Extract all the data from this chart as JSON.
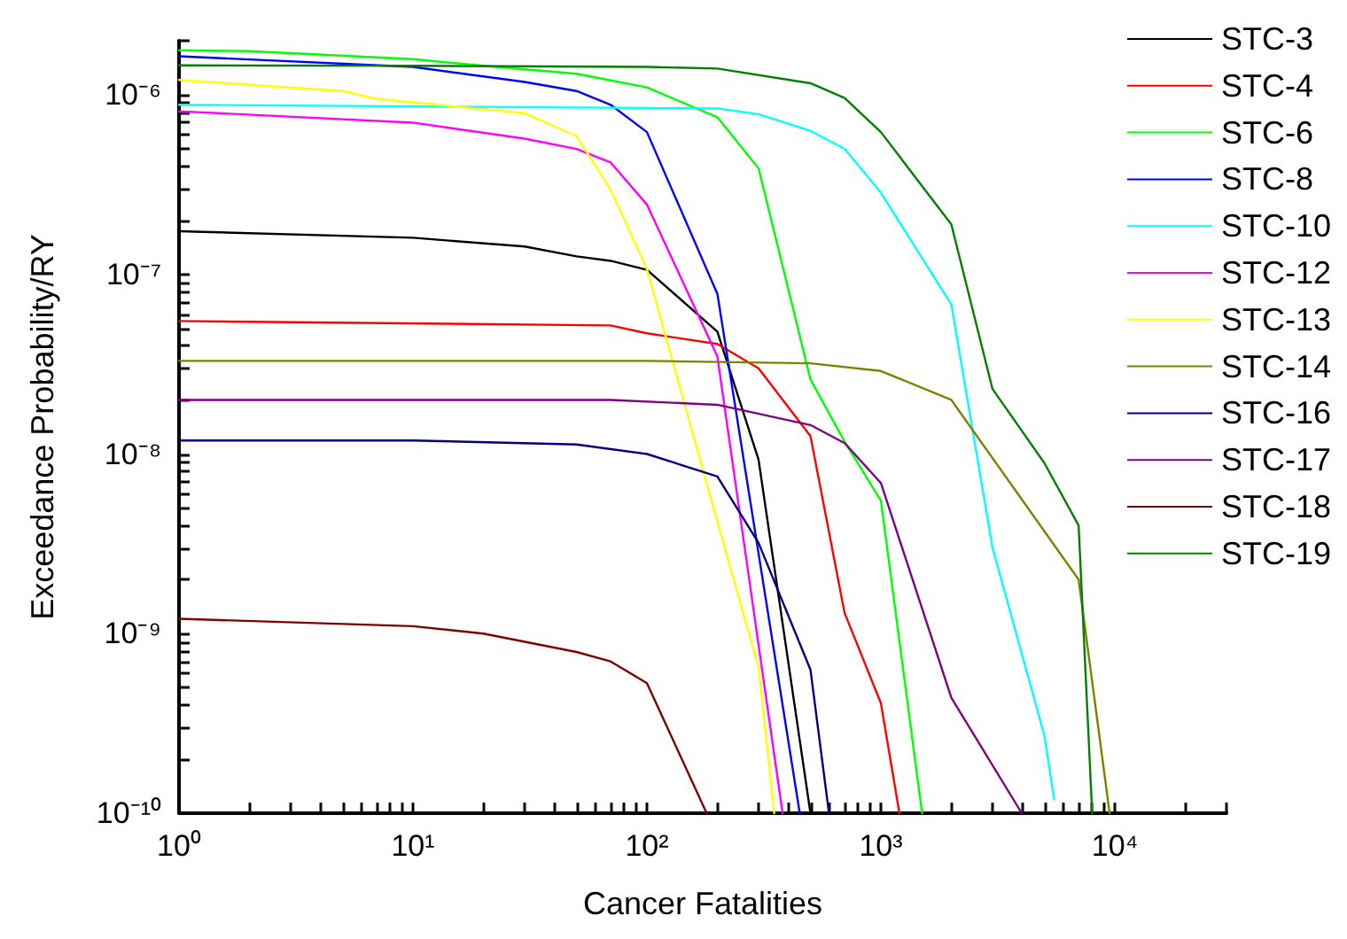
{
  "chart_data": {
    "type": "line",
    "xlabel": "Cancer Fatalities",
    "ylabel": "Exceedance Probability/RY",
    "log": "xy",
    "legend": "top right",
    "marker": "none",
    "line_style": "solid",
    "xlim": [
      1,
      30000
    ],
    "ylim": [
      1e-10,
      2e-06
    ],
    "xticks": [
      {
        "value": 1,
        "label": "10⁰"
      },
      {
        "value": 2,
        "label": null
      },
      {
        "value": 3,
        "label": null
      },
      {
        "value": 4,
        "label": null
      },
      {
        "value": 5,
        "label": null
      },
      {
        "value": 6,
        "label": null
      },
      {
        "value": 7,
        "label": null
      },
      {
        "value": 8,
        "label": null
      },
      {
        "value": 9,
        "label": null
      },
      {
        "value": 10,
        "label": "10¹"
      },
      {
        "value": 20,
        "label": null
      },
      {
        "value": 30,
        "label": null
      },
      {
        "value": 40,
        "label": null
      },
      {
        "value": 50,
        "label": null
      },
      {
        "value": 60,
        "label": null
      },
      {
        "value": 70,
        "label": null
      },
      {
        "value": 80,
        "label": null
      },
      {
        "value": 90,
        "label": null
      },
      {
        "value": 100,
        "label": "10²"
      },
      {
        "value": 200,
        "label": null
      },
      {
        "value": 300,
        "label": null
      },
      {
        "value": 400,
        "label": null
      },
      {
        "value": 500,
        "label": null
      },
      {
        "value": 600,
        "label": null
      },
      {
        "value": 700,
        "label": null
      },
      {
        "value": 800,
        "label": null
      },
      {
        "value": 900,
        "label": null
      },
      {
        "value": 1000,
        "label": "10³"
      },
      {
        "value": 2000,
        "label": null
      },
      {
        "value": 3000,
        "label": null
      },
      {
        "value": 4000,
        "label": null
      },
      {
        "value": 5000,
        "label": null
      },
      {
        "value": 6000,
        "label": null
      },
      {
        "value": 7000,
        "label": null
      },
      {
        "value": 8000,
        "label": null
      },
      {
        "value": 9000,
        "label": null
      },
      {
        "value": 10000,
        "label": "10⁴"
      },
      {
        "value": 20000,
        "label": null
      },
      {
        "value": 30000,
        "label": null
      }
    ],
    "yticks": [
      {
        "value": 1e-10,
        "label": "10⁻¹⁰"
      },
      {
        "value": 2e-10,
        "label": null
      },
      {
        "value": 3e-10,
        "label": null
      },
      {
        "value": 4e-10,
        "label": null
      },
      {
        "value": 5e-10,
        "label": null
      },
      {
        "value": 6e-10,
        "label": null
      },
      {
        "value": 7e-10,
        "label": null
      },
      {
        "value": 8e-10,
        "label": null
      },
      {
        "value": 9e-10,
        "label": null
      },
      {
        "value": 1e-09,
        "label": "10⁻⁹"
      },
      {
        "value": 2e-09,
        "label": null
      },
      {
        "value": 3e-09,
        "label": null
      },
      {
        "value": 4e-09,
        "label": null
      },
      {
        "value": 5e-09,
        "label": null
      },
      {
        "value": 6e-09,
        "label": null
      },
      {
        "value": 7e-09,
        "label": null
      },
      {
        "value": 8e-09,
        "label": null
      },
      {
        "value": 9e-09,
        "label": null
      },
      {
        "value": 1e-08,
        "label": "10⁻⁸"
      },
      {
        "value": 2e-08,
        "label": null
      },
      {
        "value": 3e-08,
        "label": null
      },
      {
        "value": 4e-08,
        "label": null
      },
      {
        "value": 5e-08,
        "label": null
      },
      {
        "value": 6e-08,
        "label": null
      },
      {
        "value": 7e-08,
        "label": null
      },
      {
        "value": 8e-08,
        "label": null
      },
      {
        "value": 9e-08,
        "label": null
      },
      {
        "value": 1e-07,
        "label": "10⁻⁷"
      },
      {
        "value": 2e-07,
        "label": null
      },
      {
        "value": 3e-07,
        "label": null
      },
      {
        "value": 4e-07,
        "label": null
      },
      {
        "value": 5e-07,
        "label": null
      },
      {
        "value": 6e-07,
        "label": null
      },
      {
        "value": 7e-07,
        "label": null
      },
      {
        "value": 8e-07,
        "label": null
      },
      {
        "value": 9e-07,
        "label": null
      },
      {
        "value": 1e-06,
        "label": "10⁻⁶"
      },
      {
        "value": 2e-06,
        "label": null
      }
    ],
    "series": [
      {
        "name": "STC-3",
        "color": "#000000",
        "x": [
          1,
          10,
          30,
          50,
          70,
          100,
          200,
          300,
          500
        ],
        "values": [
          1.74e-07,
          1.6e-07,
          1.43e-07,
          1.26e-07,
          1.19e-07,
          1.06e-07,
          4.8e-08,
          9.3e-09,
          1e-10
        ]
      },
      {
        "name": "STC-4",
        "color": "#ff0000",
        "x": [
          1,
          70,
          100,
          200,
          300,
          500,
          700,
          1000,
          1200
        ],
        "values": [
          5.5e-08,
          5.2e-08,
          4.7e-08,
          4.1e-08,
          3e-08,
          1.26e-08,
          1.3e-09,
          4.1e-10,
          1e-10
        ]
      },
      {
        "name": "STC-6",
        "color": "#00ff00",
        "x": [
          1,
          2,
          10,
          20,
          50,
          100,
          200,
          300,
          500,
          700,
          1000,
          1500
        ],
        "values": [
          1.77e-06,
          1.75e-06,
          1.58e-06,
          1.45e-06,
          1.31e-06,
          1.1e-06,
          7.5e-07,
          3.9e-07,
          2.6e-08,
          1.17e-08,
          5.5e-09,
          1e-10
        ]
      },
      {
        "name": "STC-8",
        "color": "#0000ff",
        "x": [
          1,
          10,
          30,
          50,
          70,
          100,
          200,
          450
        ],
        "values": [
          1.64e-06,
          1.43e-06,
          1.18e-06,
          1.05e-06,
          8.8e-07,
          6.2e-07,
          7.8e-08,
          1e-10
        ]
      },
      {
        "name": "STC-10",
        "color": "#00ffff",
        "x": [
          1,
          200,
          300,
          500,
          700,
          1000,
          2000,
          3000,
          5000,
          5500
        ],
        "values": [
          8.8e-07,
          8.4e-07,
          7.8e-07,
          6.3e-07,
          5e-07,
          2.85e-07,
          6.8e-08,
          3e-09,
          2.7e-10,
          1.2e-10
        ]
      },
      {
        "name": "STC-12",
        "color": "#ff00ff",
        "x": [
          1,
          10,
          30,
          50,
          70,
          100,
          200,
          380
        ],
        "values": [
          8.1e-07,
          7e-07,
          5.7e-07,
          5e-07,
          4.2e-07,
          2.45e-07,
          3.5e-08,
          1e-10
        ]
      },
      {
        "name": "STC-13",
        "color": "#ffff00",
        "x": [
          1,
          5,
          7,
          30,
          50,
          70,
          100,
          200,
          300,
          350
        ],
        "values": [
          1.21e-06,
          1.05e-06,
          9.5e-07,
          7.9e-07,
          5.9e-07,
          2.96e-07,
          1.07e-07,
          4.2e-09,
          6.5e-10,
          1e-10
        ]
      },
      {
        "name": "STC-14",
        "color": "#808000",
        "x": [
          1,
          100,
          500,
          1000,
          2000,
          7000,
          9500
        ],
        "values": [
          3.3e-08,
          3.3e-08,
          3.2e-08,
          2.9e-08,
          2e-08,
          2e-09,
          1e-10
        ]
      },
      {
        "name": "STC-16",
        "color": "#000080",
        "x": [
          1,
          10,
          50,
          100,
          200,
          300,
          500,
          600
        ],
        "values": [
          1.19e-08,
          1.19e-08,
          1.13e-08,
          1e-08,
          7.5e-09,
          3.2e-09,
          6.3e-10,
          1e-10
        ]
      },
      {
        "name": "STC-17",
        "color": "#800080",
        "x": [
          1,
          70,
          200,
          500,
          700,
          1000,
          2000,
          4000
        ],
        "values": [
          2e-08,
          2e-08,
          1.88e-08,
          1.45e-08,
          1.15e-08,
          6.9e-09,
          4.4e-10,
          1e-10
        ]
      },
      {
        "name": "STC-18",
        "color": "#800000",
        "x": [
          1,
          10,
          20,
          50,
          70,
          100,
          180
        ],
        "values": [
          1.21e-09,
          1.1e-09,
          1e-09,
          7.9e-10,
          7e-10,
          5.3e-10,
          1e-10
        ]
      },
      {
        "name": "STC-19",
        "color": "#008000",
        "x": [
          1,
          10,
          100,
          200,
          500,
          700,
          1000,
          2000,
          3000,
          5000,
          7000,
          8000
        ],
        "values": [
          1.46e-06,
          1.45e-06,
          1.43e-06,
          1.4e-06,
          1.16e-06,
          9.6e-07,
          6.2e-07,
          1.9e-07,
          2.3e-08,
          8.9e-09,
          4e-09,
          1e-10
        ]
      }
    ]
  }
}
